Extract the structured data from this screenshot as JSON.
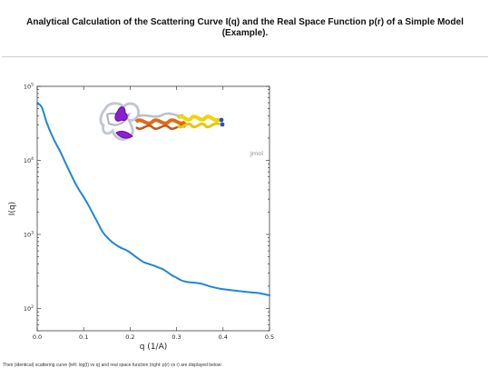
{
  "page": {
    "title_line1": "Analytical Calculation of the Scattering Curve I(q) and the Real Space Function p(r) of a Simple Model",
    "title_line2": "(Example).",
    "caption": "Their (identical) scattering curve (left: log(I) vs q) and real space function (right: p(r) vs r) are displayed below:"
  },
  "inset": {
    "watermark": "Jmol"
  },
  "chart_data": {
    "type": "line",
    "title": "",
    "xlabel": "q (1/A)",
    "ylabel": "I(q)",
    "xlim": [
      0.0,
      0.5
    ],
    "ylim": [
      50,
      100000
    ],
    "yscale": "log",
    "grid": false,
    "x_ticks": [
      "0.0",
      "0.1",
      "0.2",
      "0.3",
      "0.4",
      "0.5"
    ],
    "y_ticks": [
      {
        "value": 100000,
        "base": "10",
        "exp": "5"
      },
      {
        "value": 10000,
        "base": "10",
        "exp": "4"
      },
      {
        "value": 1000,
        "base": "10",
        "exp": "3"
      },
      {
        "value": 100,
        "base": "10",
        "exp": "2"
      }
    ],
    "series": [
      {
        "color": "#1f86d8",
        "x": [
          0.0,
          0.005,
          0.01,
          0.015,
          0.02,
          0.03,
          0.04,
          0.05,
          0.06,
          0.07,
          0.08,
          0.09,
          0.1,
          0.11,
          0.12,
          0.13,
          0.14,
          0.15,
          0.16,
          0.17,
          0.18,
          0.19,
          0.2,
          0.21,
          0.22,
          0.23,
          0.24,
          0.25,
          0.26,
          0.27,
          0.28,
          0.29,
          0.3,
          0.31,
          0.32,
          0.33,
          0.34,
          0.35,
          0.36,
          0.37,
          0.38,
          0.39,
          0.4,
          0.42,
          0.44,
          0.46,
          0.48,
          0.5
        ],
        "y": [
          58000,
          57000,
          52000,
          42000,
          33000,
          23000,
          17000,
          13000,
          9500,
          7000,
          5200,
          4000,
          3200,
          2500,
          1900,
          1450,
          1100,
          920,
          800,
          720,
          660,
          620,
          570,
          510,
          460,
          420,
          400,
          380,
          360,
          340,
          310,
          280,
          260,
          240,
          230,
          225,
          222,
          218,
          210,
          200,
          193,
          187,
          182,
          176,
          170,
          165,
          160,
          150
        ]
      }
    ]
  }
}
